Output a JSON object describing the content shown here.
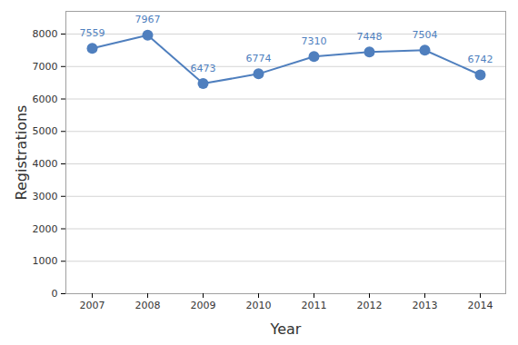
{
  "chart_data": {
    "type": "line",
    "x_label": "Year",
    "y_label": "Registrations",
    "categories": [
      "2007",
      "2008",
      "2009",
      "2010",
      "2011",
      "2012",
      "2013",
      "2014"
    ],
    "values": [
      7559,
      7967,
      6473,
      6774,
      7310,
      7448,
      7504,
      6742
    ],
    "color": "#4f7fbe",
    "marker": "circle",
    "line_style": "solid",
    "ylim": [
      0,
      8700
    ],
    "yticks": [
      0,
      1000,
      2000,
      3000,
      4000,
      5000,
      6000,
      7000,
      8000
    ],
    "grid": true,
    "data_labels": true
  }
}
